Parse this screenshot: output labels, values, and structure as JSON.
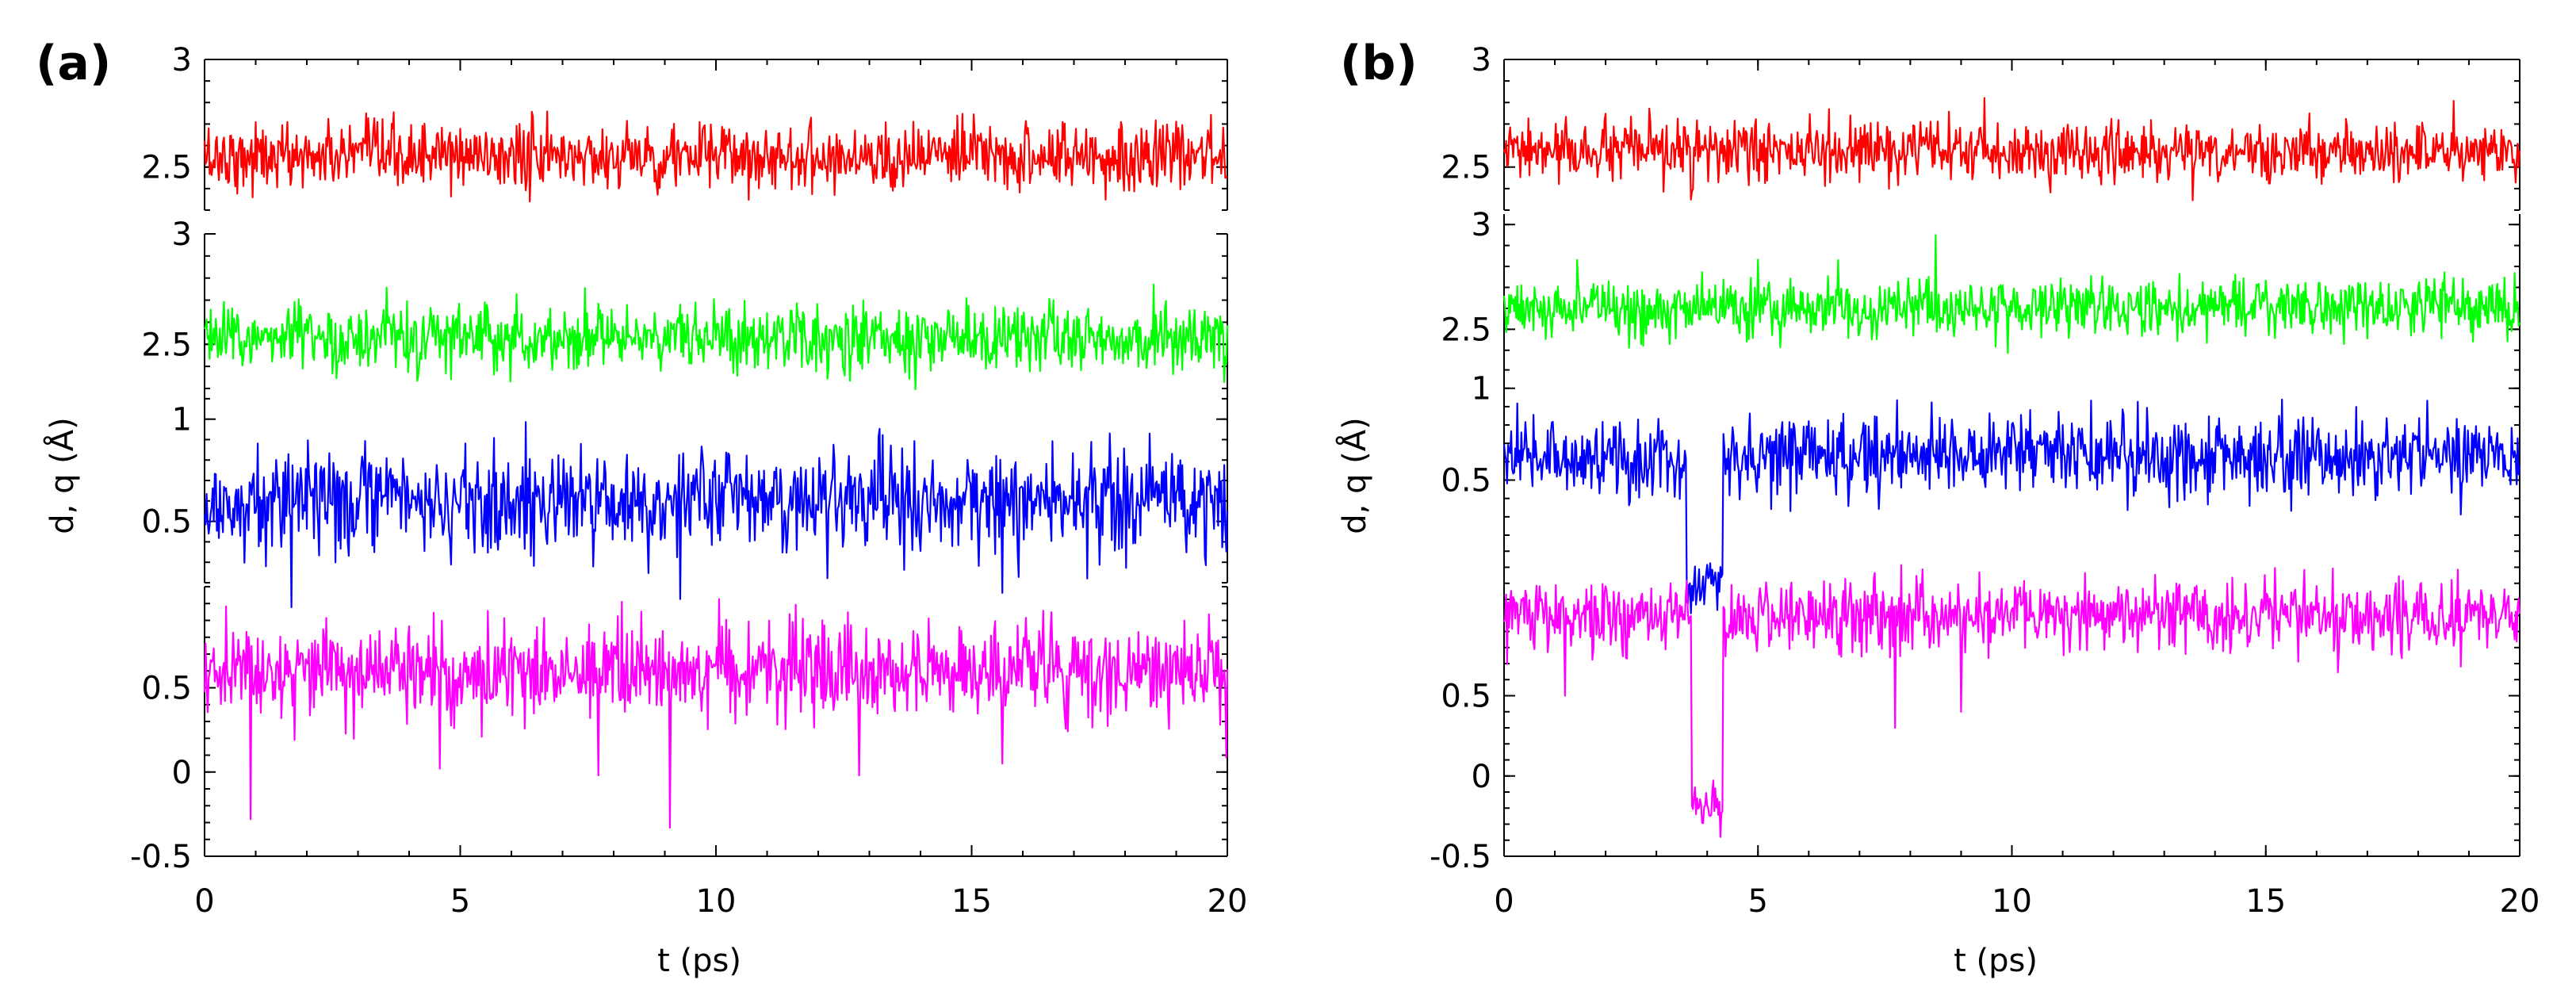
{
  "figure": {
    "ylabel": "d, q (Å)",
    "xlabel": "t (ps)"
  },
  "chart_data": [
    {
      "panel_label": "(a)",
      "type": "line",
      "xlabel": "t (ps)",
      "ylabel": "d, q (Å)",
      "xlim": [
        0,
        20
      ],
      "xticks": [
        0,
        5,
        10,
        15,
        20
      ],
      "series": [
        {
          "name": "red",
          "color": "#ff0000",
          "ylim": [
            2.3,
            3.0
          ],
          "yticks": [
            2.5,
            3
          ],
          "mean": 2.55,
          "sd": 0.09,
          "events": []
        },
        {
          "name": "green",
          "color": "#00ff00",
          "ylim": [
            2.3,
            3.0
          ],
          "yticks": [
            2.5,
            3
          ],
          "mean": 2.53,
          "sd": 0.09,
          "events": []
        },
        {
          "name": "blue",
          "color": "#0000ff",
          "ylim": [
            0.2,
            1.15
          ],
          "yticks": [
            0.5,
            1
          ],
          "mean": 0.6,
          "sd": 0.15,
          "events": [
            {
              "t": 1.7,
              "v": 0.08
            },
            {
              "t": 9.3,
              "v": 0.12
            },
            {
              "t": 15.6,
              "v": 0.15
            }
          ]
        },
        {
          "name": "magenta",
          "color": "#ff00ff",
          "ylim": [
            -0.5,
            1.1
          ],
          "yticks": [
            -0.5,
            0,
            0.5
          ],
          "mean": 0.6,
          "sd": 0.16,
          "events": [
            {
              "t": 0.9,
              "v": -0.28
            },
            {
              "t": 9.1,
              "v": -0.33
            },
            {
              "t": 4.6,
              "v": 0.02
            },
            {
              "t": 7.7,
              "v": -0.02
            },
            {
              "t": 12.8,
              "v": -0.02
            },
            {
              "t": 15.6,
              "v": 0.05
            }
          ]
        }
      ]
    },
    {
      "panel_label": "(b)",
      "type": "line",
      "xlabel": "t (ps)",
      "ylabel": "d, q (Å)",
      "xlim": [
        0,
        20
      ],
      "xticks": [
        0,
        5,
        10,
        15,
        20
      ],
      "series": [
        {
          "name": "red",
          "color": "#ff0000",
          "ylim": [
            2.3,
            3.0
          ],
          "yticks": [
            2.5,
            3
          ],
          "mean": 2.57,
          "sd": 0.08,
          "events": []
        },
        {
          "name": "green",
          "color": "#00ff00",
          "ylim": [
            2.35,
            3.05
          ],
          "yticks": [
            2.5,
            3
          ],
          "mean": 2.6,
          "sd": 0.08,
          "events": [
            {
              "t": 8.5,
              "v": 2.95
            }
          ]
        },
        {
          "name": "blue",
          "color": "#0000ff",
          "ylim": [
            0.2,
            1.15
          ],
          "yticks": [
            0.5,
            1
          ],
          "mean": 0.63,
          "sd": 0.13,
          "dip": {
            "t_start": 3.6,
            "t_end": 4.3,
            "v": -0.05
          }
        },
        {
          "name": "magenta",
          "color": "#ff00ff",
          "ylim": [
            -0.5,
            1.5
          ],
          "yticks": [
            -0.5,
            0,
            0.5
          ],
          "mean": 1.0,
          "sd": 0.13,
          "dip": {
            "t_start": 3.7,
            "t_end": 4.3,
            "v": -0.2
          },
          "events": [
            {
              "t": 4.25,
              "v": -0.38
            },
            {
              "t": 7.7,
              "v": 0.3
            },
            {
              "t": 9.0,
              "v": 0.4
            },
            {
              "t": 1.2,
              "v": 0.5
            }
          ]
        }
      ]
    }
  ]
}
